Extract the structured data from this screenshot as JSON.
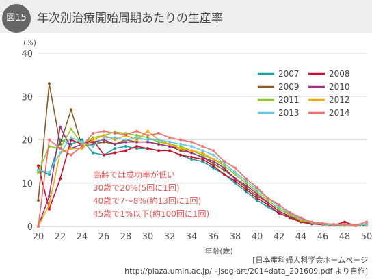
{
  "header": {
    "badge": "図15",
    "title": "年次別治療開始周期あたりの生産率"
  },
  "source": {
    "line1": "[日本産科婦人科学会ホームページ",
    "line2": "http://plaza.umin.ac.jp/~jsog-art/2014data_201609.pdf より自作]"
  },
  "chart_data": {
    "type": "line",
    "ylabel": "(%)",
    "xlabel": "年齢(歳)",
    "xlim": [
      20,
      50
    ],
    "ylim": [
      0,
      40
    ],
    "xticks": [
      20,
      22,
      24,
      26,
      28,
      30,
      32,
      34,
      36,
      38,
      40,
      42,
      44,
      46,
      48,
      50
    ],
    "yticks": [
      0,
      10,
      20,
      30,
      40
    ],
    "grid": true,
    "legend_position": "top-right",
    "x": [
      20,
      21,
      22,
      23,
      24,
      25,
      26,
      27,
      28,
      29,
      30,
      31,
      32,
      33,
      34,
      35,
      36,
      37,
      38,
      39,
      40,
      41,
      42,
      43,
      44,
      45,
      46,
      47,
      48,
      49,
      50
    ],
    "series": [
      {
        "name": "2007",
        "color": "#16a2a0",
        "values": [
          13,
          12,
          20,
          19,
          20,
          17,
          16.5,
          18,
          18.5,
          18,
          18,
          17.5,
          17.5,
          16.5,
          15.5,
          15,
          13.5,
          12,
          10,
          8,
          6,
          4.5,
          3,
          2,
          1,
          0.6,
          0.4,
          0.3,
          0.3,
          0.2,
          0.3
        ]
      },
      {
        "name": "2008",
        "color": "#c8102e",
        "values": [
          14,
          4,
          11,
          20,
          19,
          20,
          16.5,
          17,
          17.5,
          18.5,
          18,
          17.5,
          17.5,
          16.5,
          16,
          15.5,
          14,
          12,
          10.5,
          8.5,
          6.5,
          5,
          3,
          2,
          1,
          0.6,
          0.4,
          0.3,
          1,
          0.2,
          0.3
        ]
      },
      {
        "name": "2009",
        "color": "#8b5a2b",
        "values": [
          6,
          33,
          19,
          27,
          18.5,
          19,
          19.5,
          19,
          20,
          19.5,
          19.5,
          19,
          18.5,
          17.5,
          17,
          16,
          14.5,
          13,
          11,
          9,
          7,
          5.5,
          3.5,
          2.2,
          1.2,
          0.7,
          0.5,
          0.3,
          0.3,
          0.2,
          0.3
        ]
      },
      {
        "name": "2010",
        "color": "#a03080",
        "values": [
          0,
          7,
          23,
          18,
          19,
          19.5,
          20,
          19,
          19.5,
          19.5,
          19.5,
          19,
          18.5,
          18,
          17,
          16,
          15,
          13.5,
          11,
          9.5,
          7.5,
          5.5,
          3.5,
          2.3,
          1.3,
          0.8,
          0.5,
          0.4,
          0.3,
          0.3,
          0.4
        ]
      },
      {
        "name": "2011",
        "color": "#88cc22",
        "values": [
          12.5,
          18.5,
          18,
          22.5,
          19,
          20.5,
          21,
          21.8,
          21.5,
          21,
          20.5,
          19.5,
          19,
          18.5,
          17.5,
          16.5,
          15.5,
          14,
          12,
          10,
          8,
          6,
          4,
          2.6,
          1.4,
          0.9,
          0.5,
          0.4,
          0.3,
          0.3,
          0.4
        ]
      },
      {
        "name": "2012",
        "color": "#f5a800",
        "values": [
          0,
          5,
          17,
          18,
          18,
          20,
          21,
          20,
          21,
          20,
          22,
          20,
          19,
          18,
          17.5,
          17,
          15.5,
          14.5,
          12.5,
          10.5,
          8.5,
          6.5,
          4.5,
          2.8,
          1.5,
          1,
          0.6,
          0.4,
          0.3,
          0.3,
          0.5
        ]
      },
      {
        "name": "2013",
        "color": "#66c6e8",
        "values": [
          13,
          12.5,
          17,
          20.5,
          19.5,
          18.5,
          20.5,
          20.5,
          20,
          20.5,
          20,
          20,
          19.5,
          19,
          18.5,
          17.5,
          16.5,
          14.5,
          12.5,
          10.5,
          8.5,
          6.5,
          4.5,
          3,
          1.7,
          1,
          0.6,
          0.4,
          0.4,
          0.3,
          0.5
        ]
      },
      {
        "name": "2014",
        "color": "#f26d6d",
        "values": [
          0,
          20,
          18,
          16.5,
          18.5,
          21.5,
          22,
          21.5,
          21.2,
          22,
          21,
          21.5,
          20.5,
          20,
          19.5,
          18.5,
          17.5,
          15,
          13.5,
          11,
          9,
          6.5,
          5,
          3.2,
          2,
          1,
          0.7,
          0.5,
          0.5,
          0.3,
          1
        ]
      }
    ],
    "annotation": {
      "color": "#f05050",
      "lines": [
        "高齢では成功率が低い",
        "30歳で20%(5回に1回)",
        "40歳で7～8%(約13回に1回)",
        "45歳で1%以下(約100回に1回)"
      ]
    }
  }
}
